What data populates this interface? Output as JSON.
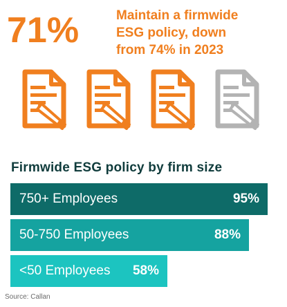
{
  "highlight": {
    "value": "71%",
    "text": "Maintain a firmwide\nESG policy, down\nfrom 74% in 2023"
  },
  "icons": {
    "name": "document-pencil-icon",
    "count_filled": 3,
    "count_total": 4,
    "filled_color": "#f07f1f",
    "empty_color": "#b3b3b3"
  },
  "chart_data": {
    "type": "bar",
    "orientation": "horizontal",
    "title": "Firmwide ESG policy by firm size",
    "categories": [
      "750+ Employees",
      "50-750 Employees",
      "<50 Employees"
    ],
    "values": [
      95,
      88,
      58
    ],
    "value_labels": [
      "95%",
      "88%",
      "58%"
    ],
    "xlim": [
      0,
      100
    ],
    "colors": [
      "#0e6b68",
      "#15a3a0",
      "#1cc4c0"
    ],
    "grid": false,
    "legend": "none"
  },
  "source": "Source: Callan"
}
